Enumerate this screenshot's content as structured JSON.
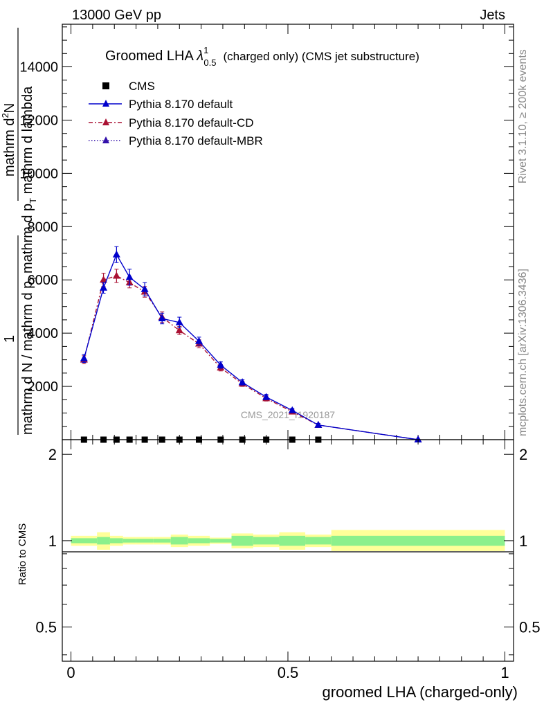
{
  "header": {
    "left": "13000 GeV pp",
    "right": "Jets"
  },
  "side_labels": {
    "rivet": "Rivet 3.1.10, ≥ 200k events",
    "mcplots": "mcplots.cern.ch [arXiv:1306.3436]"
  },
  "watermark": "CMS_2021_I1920187",
  "colors": {
    "default": "#0000cc",
    "cd": "#aa1133",
    "mbr": "#3311aa",
    "band_inner": "#8cf08c",
    "band_outer": "#ffff99"
  },
  "chart_data": [
    {
      "type": "line",
      "title_main": "Groomed LHA ",
      "title_symbol": "λ",
      "title_sup": "1",
      "title_sub": "0.5",
      "title_rest": "(charged only) (CMS jet substructure)",
      "ylabel_top_num": "mathrm d",
      "ylabel_top_sup": "2",
      "ylabel_top_rest": "N",
      "ylabel_top_den": "mathrm d p",
      "ylabel_top_den_sub": "T",
      "ylabel_top_den_rest": " mathrm d lambda",
      "ylabel_bottom_num": "1",
      "ylabel_bottom_den": "mathrm d N / mathrm d p",
      "ylabel_bottom_den_sub": "T",
      "ylim": [
        0,
        15600
      ],
      "ytick_values": [
        2000,
        4000,
        6000,
        8000,
        10000,
        12000,
        14000
      ],
      "ytick_labels": [
        "2000",
        "4000",
        "6000",
        "8000",
        "10000",
        "12000",
        "14000"
      ],
      "xlim": [
        -0.02,
        1.02
      ],
      "grid": false,
      "legend_position": "top-left",
      "data_x": [
        0.03,
        0.075,
        0.105,
        0.135,
        0.17,
        0.21,
        0.25,
        0.295,
        0.345,
        0.395,
        0.45,
        0.51,
        0.57
      ],
      "data_y": [
        0,
        0,
        0,
        0,
        0,
        0,
        0,
        0,
        0,
        0,
        0,
        0,
        0
      ],
      "series": [
        {
          "name": "CMS",
          "marker": "square",
          "x": [
            0.03,
            0.075,
            0.105,
            0.135,
            0.17,
            0.21,
            0.25,
            0.295,
            0.345,
            0.395,
            0.45,
            0.51,
            0.57
          ],
          "y": [
            0,
            0,
            0,
            0,
            0,
            0,
            0,
            0,
            0,
            0,
            0,
            0,
            0
          ]
        },
        {
          "name": "Pythia 8.170 default",
          "marker": "triangle",
          "line": "solid",
          "color": "#0000cc",
          "x": [
            0.03,
            0.075,
            0.105,
            0.135,
            0.17,
            0.21,
            0.25,
            0.295,
            0.345,
            0.395,
            0.45,
            0.51,
            0.57,
            0.8
          ],
          "y": [
            3050,
            5700,
            6950,
            6100,
            5650,
            4550,
            4400,
            3700,
            2800,
            2150,
            1600,
            1100,
            550,
            0
          ],
          "err": [
            150,
            200,
            300,
            300,
            250,
            200,
            200,
            150,
            120,
            100,
            100,
            80,
            60,
            20
          ]
        },
        {
          "name": "Pythia 8.170 default-CD",
          "marker": "triangle",
          "line": "dashdot",
          "color": "#aa1133",
          "x": [
            0.03,
            0.075,
            0.105,
            0.135,
            0.17,
            0.21,
            0.25,
            0.295,
            0.345,
            0.395,
            0.45,
            0.51,
            0.57,
            0.8
          ],
          "y": [
            3000,
            6000,
            6150,
            5900,
            5550,
            4600,
            4100,
            3600,
            2700,
            2100,
            1550,
            1050,
            550,
            0
          ],
          "err": [
            150,
            250,
            250,
            200,
            200,
            200,
            150,
            150,
            120,
            100,
            100,
            80,
            60,
            20
          ]
        },
        {
          "name": "Pythia 8.170 default-MBR",
          "marker": "triangle",
          "line": "dotted",
          "color": "#3311aa",
          "x": [],
          "y": []
        }
      ]
    },
    {
      "type": "area",
      "ylabel": "Ratio to CMS",
      "xlabel": "groomed LHA (charged-only)",
      "ylim": [
        0.38,
        2.25
      ],
      "ytick_values": [
        0.5,
        1,
        2
      ],
      "ytick_labels": [
        "0.5",
        "1",
        "2"
      ],
      "xlim": [
        -0.02,
        1.02
      ],
      "xtick_values": [
        0,
        0.5,
        1
      ],
      "xtick_labels": [
        "0",
        "0.5",
        "1"
      ],
      "bins": [
        0,
        0.06,
        0.09,
        0.12,
        0.15,
        0.19,
        0.23,
        0.27,
        0.32,
        0.37,
        0.42,
        0.48,
        0.54,
        0.6,
        1.0
      ],
      "band_inner_lo": [
        0.98,
        0.97,
        0.98,
        0.985,
        0.985,
        0.985,
        0.97,
        0.98,
        0.985,
        0.96,
        0.97,
        0.96,
        0.97,
        0.96
      ],
      "band_inner_hi": [
        1.02,
        1.03,
        1.02,
        1.015,
        1.015,
        1.015,
        1.03,
        1.02,
        1.015,
        1.04,
        1.03,
        1.04,
        1.03,
        1.04
      ],
      "band_outer_lo": [
        0.96,
        0.93,
        0.96,
        0.97,
        0.97,
        0.97,
        0.95,
        0.96,
        0.975,
        0.94,
        0.95,
        0.93,
        0.95,
        0.92
      ],
      "band_outer_hi": [
        1.04,
        1.07,
        1.04,
        1.03,
        1.03,
        1.03,
        1.05,
        1.04,
        1.025,
        1.06,
        1.05,
        1.07,
        1.05,
        1.09
      ]
    }
  ]
}
